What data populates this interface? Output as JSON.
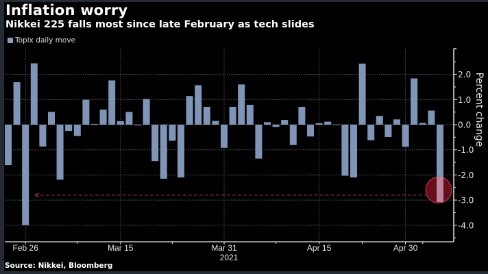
{
  "header": {
    "title": "Inflation worry",
    "subtitle": "Nikkei 225 falls most since late February as tech slides"
  },
  "footer": {
    "source": "Source: Nikkei, Bloomberg"
  },
  "colors": {
    "bar": "#7f95b8",
    "highlight_fill": "#7a1020",
    "highlight_stroke": "#b8404e",
    "arrow": "#8a2a36",
    "grid": "#5a5a5a",
    "axis": "#e6e6e6"
  },
  "chart_data": {
    "type": "bar",
    "title": "Inflation worry",
    "subtitle": "Nikkei 225 falls most since late February as tech slides",
    "xlabel": "2021",
    "ylabel": "Percent change",
    "legend": {
      "entries": [
        "Topix daily move"
      ],
      "placement": "top-left"
    },
    "ylim": [
      -4.6,
      3.0
    ],
    "yticks": [
      2.0,
      1.0,
      0.0,
      -1.0,
      -2.0,
      -3.0,
      -4.0
    ],
    "ytick_labels": [
      "2.0",
      "1.0",
      "0.0",
      "-1.0",
      "-2.0",
      "-3.0",
      "-4.0"
    ],
    "xtick_labels": [
      {
        "label": "Feb 26",
        "index": 2
      },
      {
        "label": "Mar 15",
        "index": 13
      },
      {
        "label": "Mar 31",
        "index": 25
      },
      {
        "label": "Apr 15",
        "index": 36
      },
      {
        "label": "Apr 30",
        "index": 46
      }
    ],
    "minor_tick_indices": [
      8,
      19,
      31,
      41,
      48
    ],
    "grid": true,
    "series": [
      {
        "name": "Topix daily move",
        "values": [
          -1.61,
          1.69,
          -4.0,
          2.44,
          -0.87,
          0.51,
          -2.19,
          -0.25,
          -0.45,
          0.99,
          0.03,
          0.6,
          1.76,
          0.14,
          0.51,
          -0.03,
          1.02,
          -1.45,
          -2.15,
          -0.64,
          -2.1,
          1.14,
          1.57,
          0.71,
          0.15,
          -0.92,
          0.71,
          1.6,
          0.79,
          -1.35,
          0.1,
          -0.09,
          0.19,
          -0.81,
          0.71,
          -0.47,
          0.06,
          0.12,
          0.01,
          -2.03,
          -2.1,
          2.43,
          -0.62,
          0.35,
          -0.49,
          0.21,
          -0.88,
          1.84,
          0.07,
          0.56,
          -3.08
        ]
      }
    ],
    "annotations": [
      {
        "type": "circle-highlight",
        "index": 50,
        "value": -2.6
      },
      {
        "type": "dashed-arrow",
        "value": -2.8,
        "from_index": 50,
        "to_index": 3,
        "direction": "left"
      }
    ]
  }
}
